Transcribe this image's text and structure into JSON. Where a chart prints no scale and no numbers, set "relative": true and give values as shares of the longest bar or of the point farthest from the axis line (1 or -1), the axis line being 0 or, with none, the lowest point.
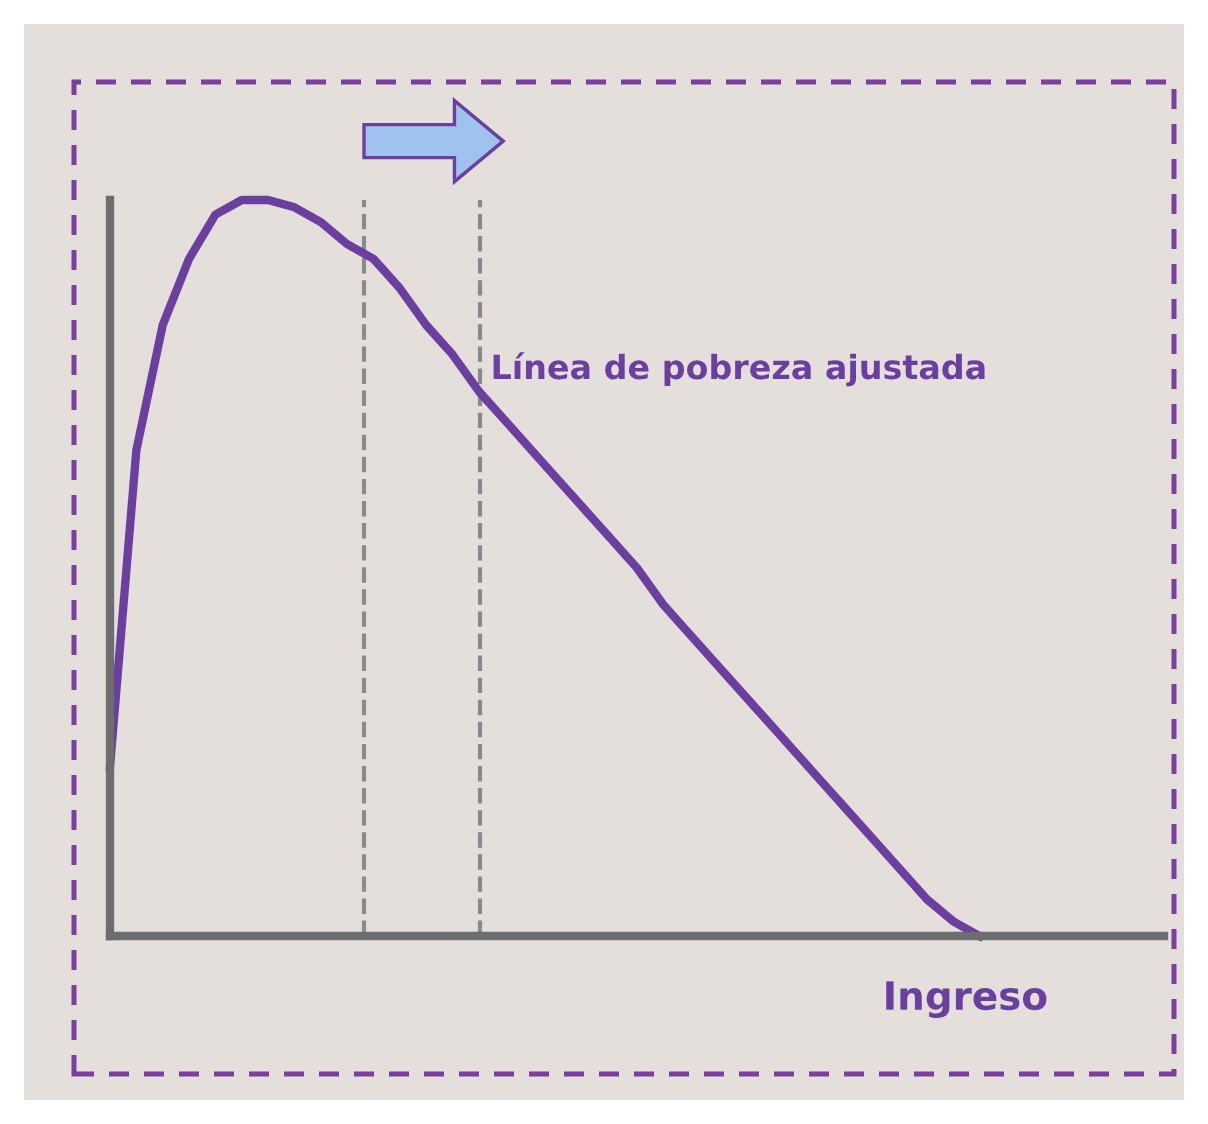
{
  "chart_data": {
    "type": "line",
    "relative": true,
    "xlabel": "Ingreso",
    "categories": [
      null,
      null,
      null,
      null,
      null,
      null,
      null,
      null,
      null,
      null,
      null,
      null,
      null,
      null,
      null,
      null,
      null,
      null,
      null,
      null,
      null,
      null,
      null,
      null,
      null,
      null,
      null,
      null,
      null,
      null,
      null,
      null,
      null,
      null,
      null,
      null,
      null,
      null,
      null,
      null,
      null
    ],
    "series": [
      {
        "color": "#6b3fa0",
        "values": [
          0.23,
          0.66,
          0.83,
          0.92,
          0.98,
          1.0,
          1.0,
          0.99,
          0.97,
          0.94,
          0.92,
          0.88,
          0.83,
          0.79,
          0.74,
          0.7,
          0.66,
          0.62,
          0.58,
          0.54,
          0.5,
          0.45,
          0.41,
          0.37,
          0.33,
          0.29,
          0.25,
          0.21,
          0.17,
          0.13,
          0.09,
          0.05,
          0.02,
          0.0,
          null,
          null,
          null,
          null,
          null,
          null,
          null
        ]
      }
    ],
    "annotations": [
      "Línea de pobreza ajustada"
    ],
    "legend": false,
    "marker": "none",
    "line_style": "solid"
  }
}
